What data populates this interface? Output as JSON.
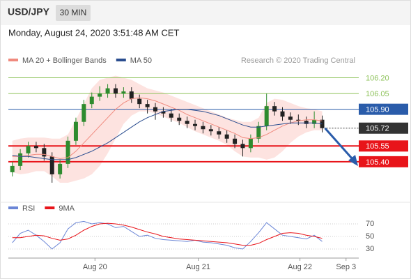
{
  "header": {
    "symbol": "USD/JPY",
    "interval": "30 MIN",
    "timestamp": "Monday, August 24, 2020 3:51:48 AM CET"
  },
  "chart_data": [
    {
      "type": "candlestick",
      "credit": "Research © 2020 Trading Central",
      "ylim": [
        105.08,
        106.31
      ],
      "xlim": [
        -0.5,
        43.6
      ],
      "xticks": [
        {
          "value": 10.4,
          "label": "Aug 20"
        },
        {
          "value": 23.4,
          "label": "Aug 21"
        },
        {
          "value": 36.2,
          "label": "Aug 22"
        },
        {
          "value": 42.0,
          "label": "Sep 3"
        }
      ],
      "up_color": "#2e8b2e",
      "down_color": "#222222",
      "open": [
        105.3,
        105.36,
        105.48,
        105.55,
        105.53,
        105.45,
        105.28,
        105.38,
        105.6,
        105.78,
        105.95,
        106.02,
        106.05,
        106.1,
        106.05,
        106.07,
        106.0,
        105.95,
        105.92,
        105.88,
        105.86,
        105.82,
        105.79,
        105.76,
        105.74,
        105.71,
        105.69,
        105.66,
        105.62,
        105.57,
        105.53,
        105.62,
        105.74,
        105.93,
        105.88,
        105.83,
        105.8,
        105.79,
        105.76,
        105.8
      ],
      "high": [
        105.4,
        105.52,
        105.59,
        105.59,
        105.57,
        105.49,
        105.42,
        105.64,
        105.82,
        105.99,
        106.06,
        106.12,
        106.14,
        106.14,
        106.11,
        106.11,
        106.04,
        105.99,
        105.96,
        105.92,
        105.9,
        105.86,
        105.83,
        105.8,
        105.78,
        105.75,
        105.73,
        105.7,
        105.66,
        105.61,
        105.66,
        105.78,
        106.05,
        105.97,
        105.92,
        105.87,
        105.85,
        105.83,
        105.88,
        105.84
      ],
      "low": [
        105.26,
        105.32,
        105.44,
        105.49,
        105.41,
        105.2,
        105.24,
        105.34,
        105.56,
        105.74,
        105.91,
        105.98,
        106.01,
        106.01,
        106.01,
        105.96,
        105.91,
        105.86,
        105.8,
        105.82,
        105.78,
        105.75,
        105.72,
        105.7,
        105.67,
        105.65,
        105.62,
        105.58,
        105.53,
        105.45,
        105.49,
        105.58,
        105.7,
        105.84,
        105.79,
        105.76,
        105.75,
        105.72,
        105.72,
        105.68
      ],
      "close": [
        105.36,
        105.48,
        105.55,
        105.53,
        105.45,
        105.28,
        105.38,
        105.6,
        105.78,
        105.95,
        106.02,
        106.05,
        106.1,
        106.05,
        106.07,
        106.0,
        105.95,
        105.92,
        105.88,
        105.86,
        105.82,
        105.79,
        105.76,
        105.74,
        105.71,
        105.69,
        105.66,
        105.62,
        105.57,
        105.53,
        105.62,
        105.74,
        105.93,
        105.88,
        105.83,
        105.8,
        105.79,
        105.76,
        105.8,
        105.72
      ],
      "series": [
        {
          "name": "MA 20 + Bollinger Bands",
          "color": "#f08a7e",
          "band_color": "#fde3e0",
          "values": [
            105.45,
            105.45,
            105.46,
            105.47,
            105.47,
            105.45,
            105.43,
            105.44,
            105.5,
            105.58,
            105.66,
            105.74,
            105.82,
            105.9,
            105.96,
            106.0,
            106.01,
            106.0,
            105.98,
            105.95,
            105.92,
            105.89,
            105.85,
            105.82,
            105.79,
            105.76,
            105.73,
            105.7,
            105.67,
            105.63,
            105.62,
            105.63,
            105.66,
            105.7,
            105.74,
            105.77,
            105.79,
            105.8,
            105.8,
            105.79
          ],
          "upper": [
            105.6,
            105.62,
            105.63,
            105.63,
            105.63,
            105.62,
            105.62,
            105.66,
            105.8,
            105.95,
            106.1,
            106.18,
            106.2,
            106.22,
            106.2,
            106.18,
            106.14,
            106.1,
            106.08,
            106.06,
            106.03,
            106.0,
            105.97,
            105.94,
            105.91,
            105.88,
            105.85,
            105.82,
            105.8,
            105.78,
            105.78,
            105.82,
            105.96,
            106.0,
            105.99,
            105.96,
            105.93,
            105.91,
            105.9,
            105.88
          ],
          "lower": [
            105.3,
            105.28,
            105.29,
            105.31,
            105.31,
            105.26,
            105.2,
            105.2,
            105.22,
            105.24,
            105.28,
            105.36,
            105.48,
            105.62,
            105.76,
            105.84,
            105.88,
            105.88,
            105.86,
            105.83,
            105.8,
            105.77,
            105.73,
            105.69,
            105.66,
            105.63,
            105.6,
            105.56,
            105.5,
            105.45,
            105.44,
            105.44,
            105.42,
            105.44,
            105.5,
            105.58,
            105.64,
            105.68,
            105.7,
            105.7
          ]
        },
        {
          "name": "MA 50",
          "color": "#2a4d8f",
          "values": [
            105.46,
            105.45,
            105.45,
            105.44,
            105.43,
            105.42,
            105.42,
            105.42,
            105.44,
            105.47,
            105.5,
            105.54,
            105.58,
            105.63,
            105.68,
            105.73,
            105.78,
            105.82,
            105.85,
            105.88,
            105.89,
            105.9,
            105.9,
            105.89,
            105.88,
            105.86,
            105.84,
            105.81,
            105.78,
            105.75,
            105.73,
            105.73,
            105.74,
            105.75,
            105.76,
            105.77,
            105.77,
            105.77,
            105.77,
            105.76
          ]
        }
      ],
      "levels": [
        {
          "value": 106.2,
          "label": "106.20",
          "color": "#8dc25a",
          "box": false,
          "dash": false
        },
        {
          "value": 106.05,
          "label": "106.05",
          "color": "#8dc25a",
          "box": false,
          "dash": false
        },
        {
          "value": 105.9,
          "label": "105.90",
          "color": "#2a5caa",
          "box": true,
          "dash": false
        },
        {
          "value": 105.72,
          "label": "105.72",
          "color": "#333333",
          "box": true,
          "dash": true
        },
        {
          "value": 105.55,
          "label": "105.55",
          "color": "#e8141a",
          "box": true,
          "dash": false
        },
        {
          "value": 105.4,
          "label": "105.40",
          "color": "#e8141a",
          "box": true,
          "dash": false
        }
      ]
    },
    {
      "type": "line",
      "ylim": [
        20,
        80
      ],
      "yticks": [
        70,
        50,
        30
      ],
      "grid": true,
      "series": [
        {
          "name": "RSI",
          "color": "#6b86d6",
          "values": [
            40,
            55,
            60,
            52,
            42,
            30,
            40,
            62,
            72,
            74,
            70,
            72,
            70,
            64,
            66,
            58,
            50,
            52,
            47,
            45,
            44,
            43,
            42,
            44,
            41,
            40,
            38,
            36,
            32,
            30,
            42,
            56,
            72,
            62,
            52,
            50,
            48,
            46,
            52,
            42
          ]
        },
        {
          "name": "9MA",
          "color": "#e8141a",
          "values": [
            48,
            48,
            50,
            52,
            51,
            47,
            44,
            46,
            52,
            60,
            66,
            70,
            71,
            70,
            68,
            65,
            61,
            57,
            54,
            50,
            48,
            46,
            45,
            44,
            43,
            42,
            41,
            40,
            38,
            36,
            36,
            39,
            45,
            50,
            55,
            56,
            55,
            52,
            50,
            47
          ]
        }
      ]
    }
  ]
}
